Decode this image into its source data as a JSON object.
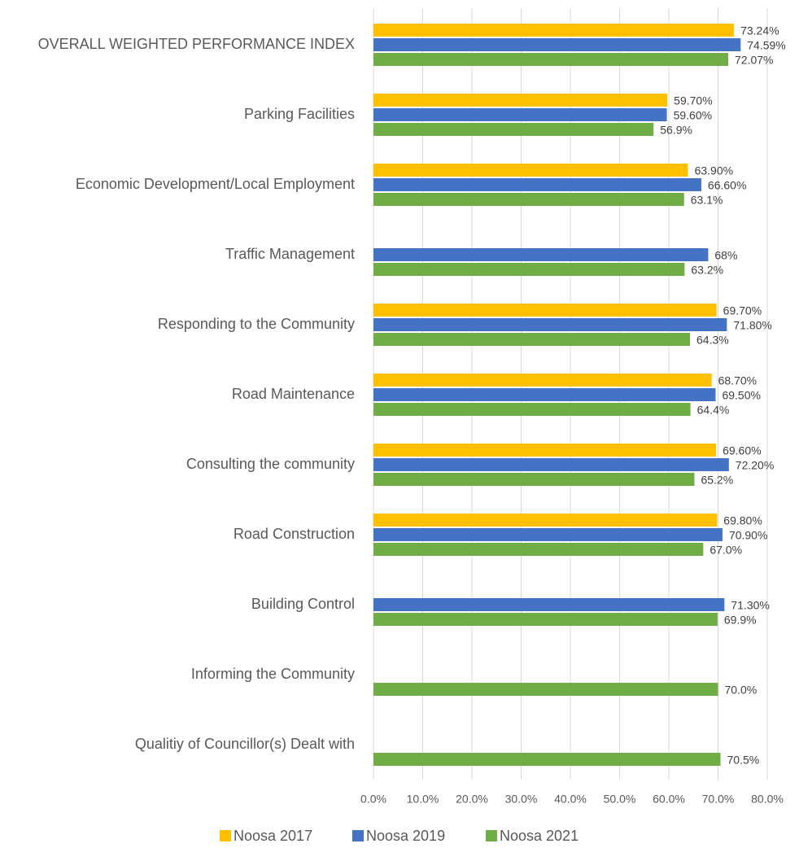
{
  "chart_data": {
    "type": "bar",
    "orientation": "horizontal",
    "categories": [
      "OVERALL WEIGHTED PERFORMANCE INDEX",
      "Parking Facilities",
      "Economic Development/Local Employment",
      "Traffic Management",
      "Responding to the Community",
      "Road Maintenance",
      "Consulting the community",
      "Road Construction",
      "Building Control",
      "Informing the Community",
      "Qualitiy of Councillor(s) Dealt with"
    ],
    "series": [
      {
        "name": "Noosa 2017",
        "color": "#ffc000",
        "values": [
          73.24,
          59.7,
          63.9,
          null,
          69.7,
          68.7,
          69.6,
          69.8,
          null,
          null,
          null
        ],
        "value_labels": [
          "73.24%",
          "59.70%",
          "63.90%",
          null,
          "69.70%",
          "68.70%",
          "69.60%",
          "69.80%",
          null,
          null,
          null
        ]
      },
      {
        "name": "Noosa 2019",
        "color": "#4472c4",
        "values": [
          74.59,
          59.6,
          66.6,
          68,
          71.8,
          69.5,
          72.2,
          70.9,
          71.3,
          null,
          null
        ],
        "value_labels": [
          "74.59%",
          "59.60%",
          "66.60%",
          "68%",
          "71.80%",
          "69.50%",
          "72.20%",
          "70.90%",
          "71.30%",
          null,
          null
        ]
      },
      {
        "name": "Noosa 2021",
        "color": "#70ad47",
        "values": [
          72.07,
          56.9,
          63.1,
          63.2,
          64.3,
          64.4,
          65.2,
          67.0,
          69.9,
          70.0,
          70.5
        ],
        "value_labels": [
          "72.07%",
          "56.9%",
          "63.1%",
          "63.2%",
          "64.3%",
          "64.4%",
          "65.2%",
          "67.0%",
          "69.9%",
          "70.0%",
          "70.5%"
        ]
      }
    ],
    "xlim": [
      0,
      80
    ],
    "xticks": [
      {
        "value": 0,
        "label": "0.0%"
      },
      {
        "value": 10,
        "label": "10.0%"
      },
      {
        "value": 20,
        "label": "20.0%"
      },
      {
        "value": 30,
        "label": "30.0%"
      },
      {
        "value": 40,
        "label": "40.0%"
      },
      {
        "value": 50,
        "label": "50.0%"
      },
      {
        "value": 60,
        "label": "60.0%"
      },
      {
        "value": 70,
        "label": "70.0%"
      },
      {
        "value": 80,
        "label": "80.0%"
      }
    ],
    "grid": true,
    "legend": "bottom"
  }
}
